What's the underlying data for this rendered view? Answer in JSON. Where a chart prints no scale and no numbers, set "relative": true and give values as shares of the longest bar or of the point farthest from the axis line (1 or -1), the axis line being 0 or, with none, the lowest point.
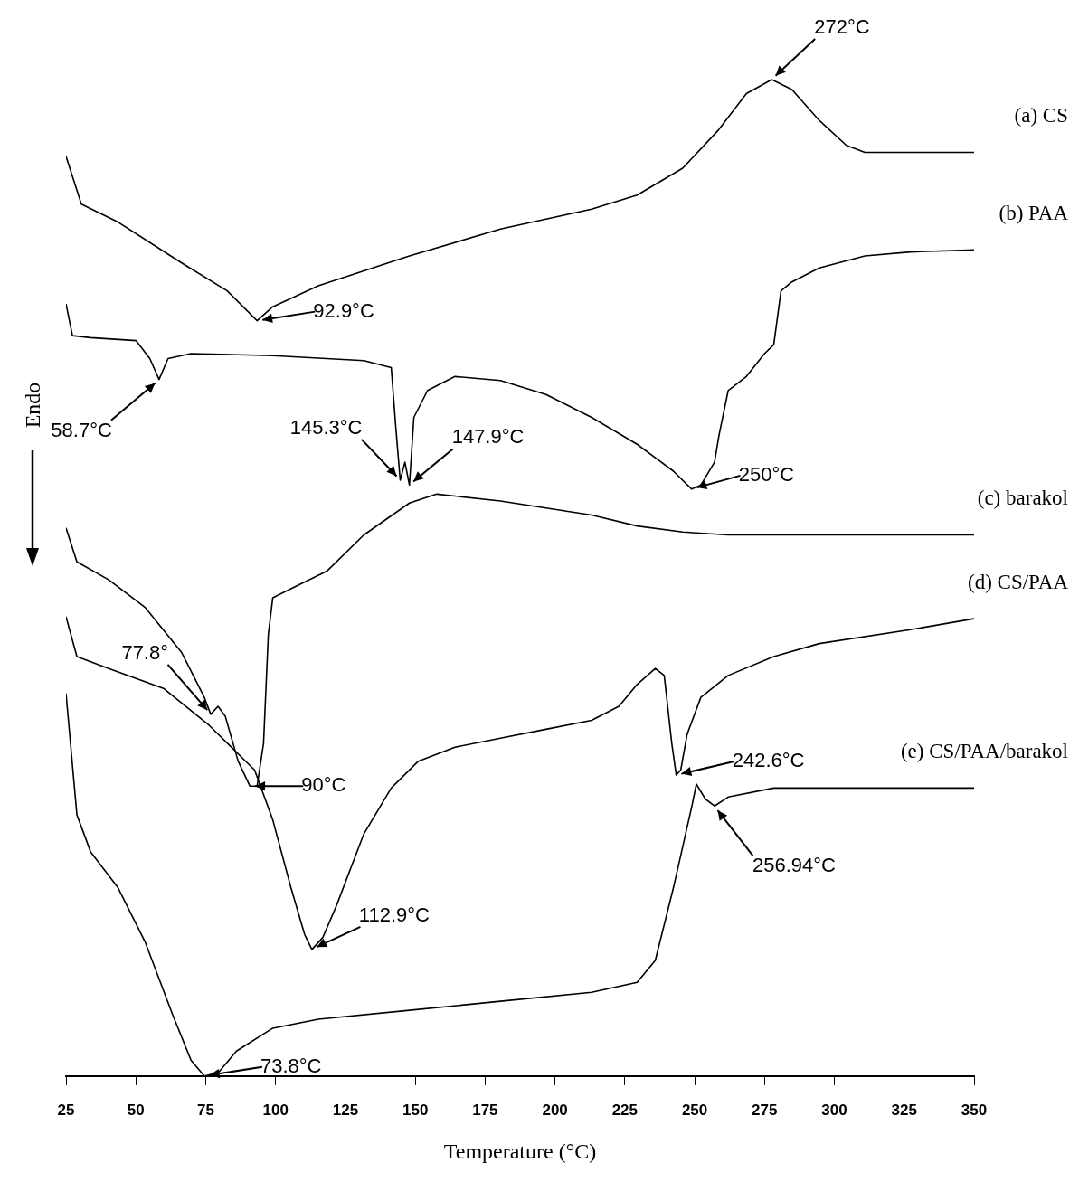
{
  "chart_data": {
    "type": "line",
    "relative": true,
    "xlabel": "Temperature (°C)",
    "ylabel": "Endo",
    "xlim": [
      25,
      350
    ],
    "xticks": [
      25,
      50,
      75,
      100,
      125,
      150,
      175,
      200,
      225,
      250,
      275,
      300,
      325,
      350
    ],
    "grid": false,
    "legend": false,
    "series": [
      {
        "name": "(a) CS",
        "color": "#000000",
        "x": [
          25,
          30.5,
          43.6,
          66.4,
          82.7,
          93.4,
          99,
          115.3,
          147.9,
          180.5,
          213.1,
          229.4,
          245.7,
          258.7,
          268.5,
          277.6,
          284.8,
          294.6,
          304.3,
          310.9,
          350
        ],
        "values": [
          0.923,
          0.875,
          0.857,
          0.816,
          0.788,
          0.758,
          0.772,
          0.793,
          0.823,
          0.85,
          0.87,
          0.884,
          0.911,
          0.95,
          0.986,
          1.0,
          0.99,
          0.959,
          0.934,
          0.927,
          0.927
        ]
      },
      {
        "name": "(b) PAA",
        "color": "#000000",
        "x": [
          25,
          27.3,
          33.8,
          50.1,
          55,
          58.3,
          61.5,
          69.7,
          99,
          131.6,
          141.4,
          143,
          144.6,
          146.3,
          147.9,
          149.5,
          154.4,
          164.2,
          180.5,
          196.8,
          213.1,
          229.4,
          242.4,
          248.9,
          252.2,
          257.1,
          258.7,
          262,
          268.5,
          275,
          278.3,
          280.9,
          284.8,
          294.6,
          310.9,
          327.2,
          350
        ],
        "values": [
          0.775,
          0.743,
          0.741,
          0.738,
          0.72,
          0.699,
          0.72,
          0.725,
          0.723,
          0.718,
          0.711,
          0.652,
          0.598,
          0.616,
          0.593,
          0.661,
          0.688,
          0.702,
          0.698,
          0.684,
          0.661,
          0.634,
          0.607,
          0.589,
          0.593,
          0.616,
          0.643,
          0.688,
          0.702,
          0.725,
          0.734,
          0.788,
          0.797,
          0.811,
          0.823,
          0.827,
          0.829
        ]
      },
      {
        "name": "(c) barakol",
        "color": "#000000",
        "x": [
          25,
          28.9,
          40.3,
          53.4,
          66.4,
          74.5,
          76.8,
          79.4,
          82,
          86.6,
          90.8,
          93.4,
          95.7,
          97.4,
          99,
          105.5,
          118.5,
          131.6,
          147.9,
          157.7,
          164.2,
          180.5,
          196.8,
          213.1,
          229.4,
          245.7,
          262,
          350
        ],
        "values": [
          0.55,
          0.516,
          0.498,
          0.47,
          0.425,
          0.38,
          0.363,
          0.371,
          0.361,
          0.316,
          0.291,
          0.291,
          0.334,
          0.443,
          0.48,
          0.489,
          0.507,
          0.543,
          0.575,
          0.584,
          0.582,
          0.577,
          0.57,
          0.563,
          0.552,
          0.546,
          0.543,
          0.543
        ]
      },
      {
        "name": "(d) CS/PAA",
        "color": "#000000",
        "x": [
          25,
          28.9,
          40.3,
          59.9,
          76.2,
          92.5,
          99,
          105.5,
          110.4,
          113,
          116.9,
          121.8,
          131.6,
          141.4,
          151.1,
          164.2,
          180.5,
          196.8,
          213.1,
          222.9,
          229.4,
          235.9,
          239.1,
          241.8,
          243.4,
          245,
          247.3,
          252.2,
          262,
          278.3,
          294.6,
          327.2,
          350
        ],
        "values": [
          0.461,
          0.421,
          0.409,
          0.389,
          0.352,
          0.307,
          0.257,
          0.189,
          0.142,
          0.127,
          0.139,
          0.171,
          0.243,
          0.289,
          0.316,
          0.33,
          0.339,
          0.348,
          0.357,
          0.371,
          0.393,
          0.409,
          0.402,
          0.334,
          0.302,
          0.307,
          0.343,
          0.38,
          0.402,
          0.421,
          0.434,
          0.448,
          0.459
        ]
      },
      {
        "name": "(e) CS/PAA/barakol",
        "color": "#000000",
        "x": [
          25,
          28.9,
          33.8,
          43.6,
          53.4,
          63.1,
          69.7,
          74.5,
          79.4,
          86,
          99,
          115.3,
          147.9,
          180.5,
          213.1,
          229.4,
          235.9,
          242.4,
          249,
          250.6,
          253.8,
          257.1,
          262,
          278.3,
          350
        ],
        "values": [
          0.384,
          0.262,
          0.225,
          0.189,
          0.134,
          0.062,
          0.016,
          0,
          0.003,
          0.025,
          0.048,
          0.057,
          0.066,
          0.075,
          0.084,
          0.094,
          0.116,
          0.189,
          0.271,
          0.293,
          0.278,
          0.271,
          0.28,
          0.289,
          0.289
        ]
      }
    ],
    "annotations": [
      {
        "text": "272°C",
        "x": 277.6,
        "y": 1.0
      },
      {
        "text": "92.9°C",
        "x": 93.4,
        "y": 0.758
      },
      {
        "text": "58.7°C",
        "x": 58.3,
        "y": 0.699
      },
      {
        "text": "145.3°C",
        "x": 144.6,
        "y": 0.598
      },
      {
        "text": "147.9°C",
        "x": 147.9,
        "y": 0.593
      },
      {
        "text": "250°C",
        "x": 248.9,
        "y": 0.589
      },
      {
        "text": "77.8°",
        "x": 76.8,
        "y": 0.363
      },
      {
        "text": "90°C",
        "x": 90.8,
        "y": 0.291
      },
      {
        "text": "242.6°C",
        "x": 243.4,
        "y": 0.302
      },
      {
        "text": "112.9°C",
        "x": 113,
        "y": 0.127
      },
      {
        "text": "256.94°C",
        "x": 257.1,
        "y": 0.271
      },
      {
        "text": "73.8°C",
        "x": 74.5,
        "y": 0
      }
    ]
  }
}
